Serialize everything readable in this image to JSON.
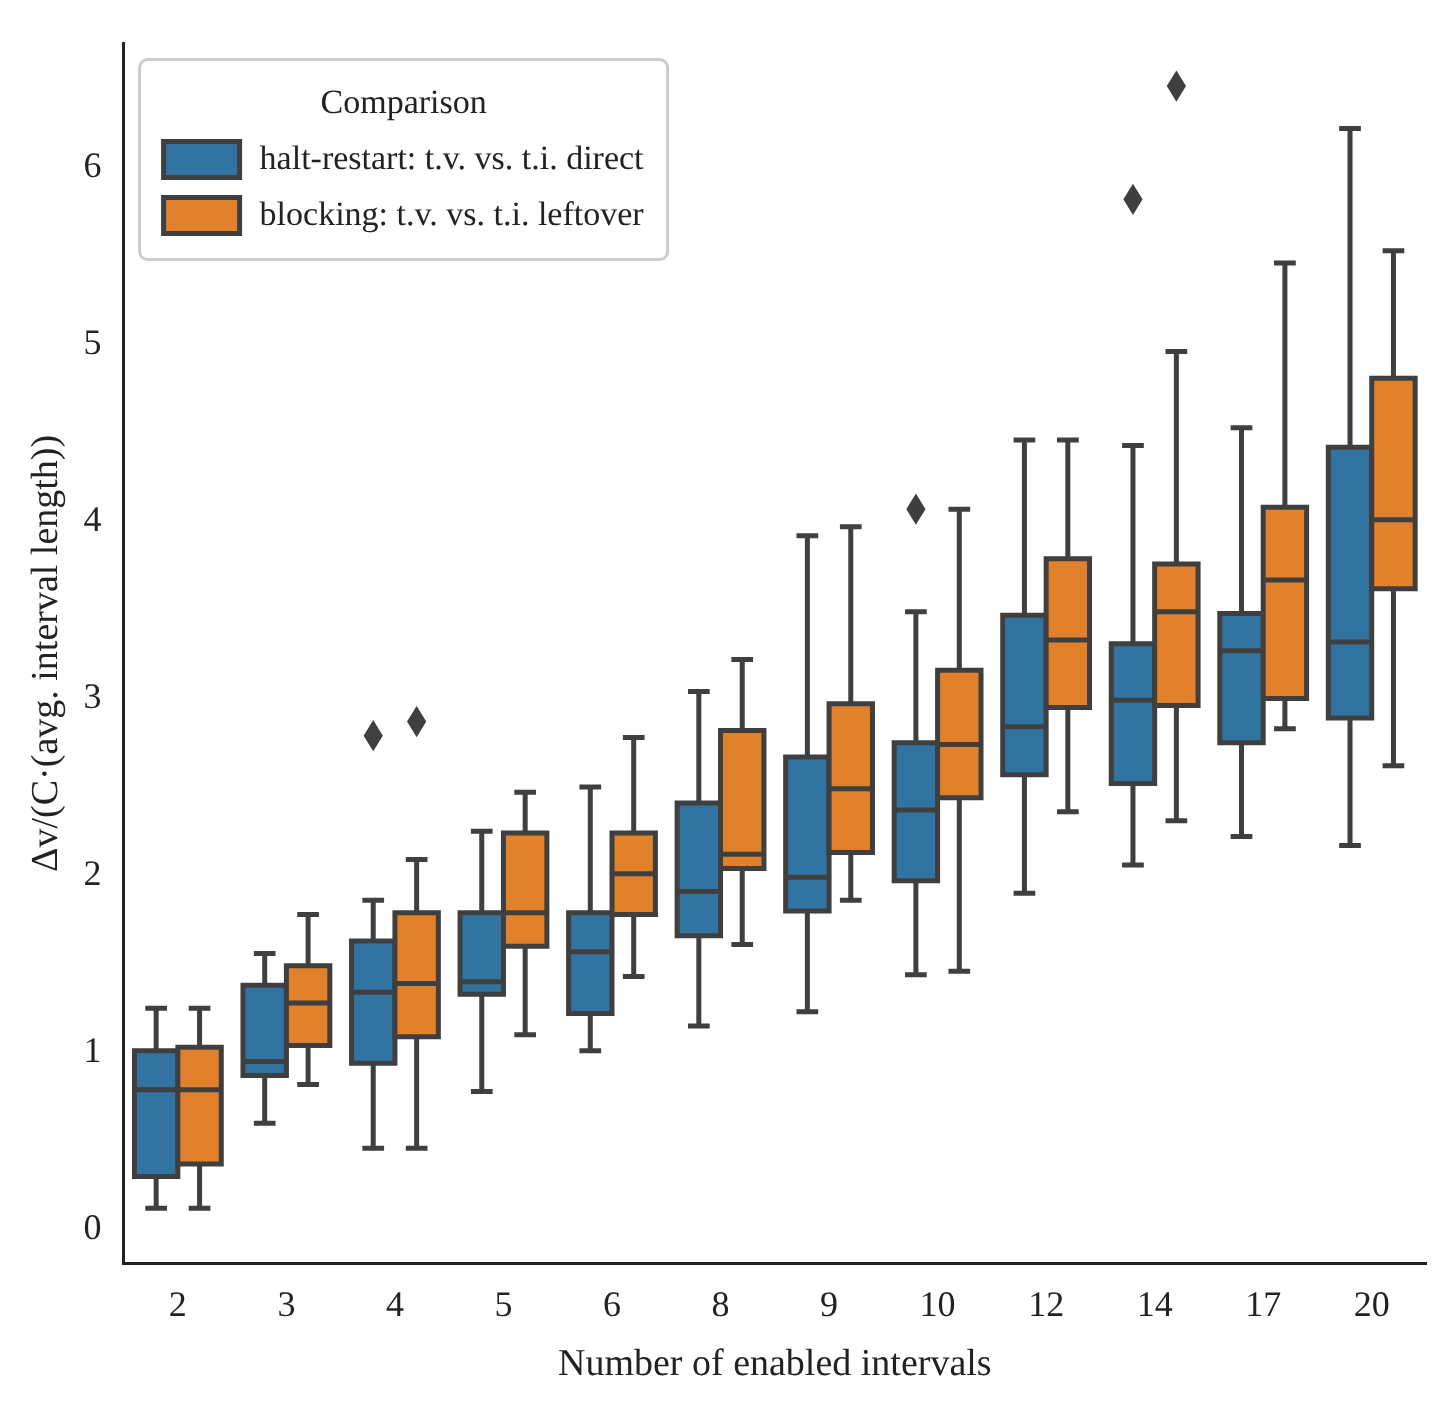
{
  "chart_data": {
    "type": "box",
    "xlabel": "Number of enabled intervals",
    "ylabel": "Δv/(C·(avg. interval length))",
    "categories": [
      "2",
      "3",
      "4",
      "5",
      "6",
      "8",
      "9",
      "10",
      "12",
      "14",
      "17",
      "20"
    ],
    "ylim": [
      -0.19,
      6.7
    ],
    "yticks": [
      0,
      1,
      2,
      3,
      4,
      5,
      6
    ],
    "grid": false,
    "legend": "top left",
    "legend_title": "Comparison",
    "marker": "diamond",
    "series": [
      {
        "name": "halt-restart: t.v. vs. t.i. direct",
        "color": "#3274a1",
        "boxes": [
          {
            "low": 0.12,
            "q1": 0.3,
            "median": 0.79,
            "q3": 1.01,
            "high": 1.25
          },
          {
            "low": 0.6,
            "q1": 0.87,
            "median": 0.95,
            "q3": 1.38,
            "high": 1.56
          },
          {
            "low": 0.46,
            "q1": 0.94,
            "median": 1.34,
            "q3": 1.63,
            "high": 1.86,
            "outliers": [
              2.79
            ]
          },
          {
            "low": 0.78,
            "q1": 1.33,
            "median": 1.4,
            "q3": 1.79,
            "high": 2.25
          },
          {
            "low": 1.01,
            "q1": 1.22,
            "median": 1.57,
            "q3": 1.79,
            "high": 2.5
          },
          {
            "low": 1.15,
            "q1": 1.66,
            "median": 1.91,
            "q3": 2.41,
            "high": 3.04
          },
          {
            "low": 1.23,
            "q1": 1.8,
            "median": 1.99,
            "q3": 2.67,
            "high": 3.92
          },
          {
            "low": 1.44,
            "q1": 1.97,
            "median": 2.37,
            "q3": 2.75,
            "high": 3.49,
            "outliers": [
              4.07
            ]
          },
          {
            "low": 1.9,
            "q1": 2.57,
            "median": 2.84,
            "q3": 3.47,
            "high": 4.46
          },
          {
            "low": 2.06,
            "q1": 2.52,
            "median": 2.99,
            "q3": 3.31,
            "high": 4.43,
            "outliers": [
              5.82
            ]
          },
          {
            "low": 2.22,
            "q1": 2.75,
            "median": 3.27,
            "q3": 3.48,
            "high": 4.53
          },
          {
            "low": 2.17,
            "q1": 2.89,
            "median": 3.32,
            "q3": 4.42,
            "high": 6.22
          }
        ]
      },
      {
        "name": "blocking: t.v. vs. t.i. leftover",
        "color": "#e1812c",
        "boxes": [
          {
            "low": 0.12,
            "q1": 0.37,
            "median": 0.79,
            "q3": 1.03,
            "high": 1.25
          },
          {
            "low": 0.82,
            "q1": 1.04,
            "median": 1.28,
            "q3": 1.49,
            "high": 1.78
          },
          {
            "low": 0.46,
            "q1": 1.09,
            "median": 1.39,
            "q3": 1.79,
            "high": 2.09,
            "outliers": [
              2.87
            ]
          },
          {
            "low": 1.1,
            "q1": 1.6,
            "median": 1.79,
            "q3": 2.24,
            "high": 2.47
          },
          {
            "low": 1.43,
            "q1": 1.78,
            "median": 2.01,
            "q3": 2.24,
            "high": 2.78
          },
          {
            "low": 1.61,
            "q1": 2.04,
            "median": 2.12,
            "q3": 2.82,
            "high": 3.22
          },
          {
            "low": 1.86,
            "q1": 2.13,
            "median": 2.49,
            "q3": 2.97,
            "high": 3.97
          },
          {
            "low": 1.46,
            "q1": 2.44,
            "median": 2.74,
            "q3": 3.16,
            "high": 4.07
          },
          {
            "low": 2.36,
            "q1": 2.95,
            "median": 3.33,
            "q3": 3.79,
            "high": 4.46
          },
          {
            "low": 2.31,
            "q1": 2.96,
            "median": 3.49,
            "q3": 3.76,
            "high": 4.96,
            "outliers": [
              6.46
            ]
          },
          {
            "low": 2.83,
            "q1": 3.0,
            "median": 3.67,
            "q3": 4.08,
            "high": 5.46
          },
          {
            "low": 2.62,
            "q1": 3.62,
            "median": 4.01,
            "q3": 4.81,
            "high": 5.53
          }
        ]
      }
    ]
  }
}
